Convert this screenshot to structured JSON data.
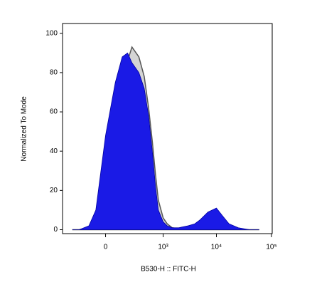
{
  "chart_data": {
    "type": "histogram-overlay",
    "xlabel": "B530-H :: FITC-H",
    "ylabel": "Normalized To Mode",
    "xscale": "biexponential",
    "x": [
      -300,
      -200,
      -100,
      -50,
      0,
      50,
      100,
      150,
      200,
      300,
      400,
      500,
      600,
      700,
      800,
      1000,
      1200,
      1500,
      2000,
      3000,
      4000,
      5000,
      7000,
      10000,
      13000,
      17000,
      25000,
      40000,
      60000
    ],
    "series": [
      {
        "name": null,
        "color": "#d4d4d4",
        "values": [
          0,
          0,
          1,
          8,
          40,
          70,
          82,
          86,
          93,
          88,
          78,
          62,
          45,
          28,
          15,
          6,
          3,
          1,
          0.5,
          0,
          0,
          0,
          0,
          0,
          0,
          0,
          0,
          0,
          0
        ]
      },
      {
        "name": null,
        "color": "#1a1ae6",
        "values": [
          0,
          0,
          2,
          10,
          48,
          75,
          88,
          90,
          85,
          80,
          72,
          58,
          40,
          22,
          10,
          4,
          2,
          1,
          1,
          2,
          3,
          5,
          9,
          11,
          7,
          3,
          1,
          0,
          0
        ]
      }
    ],
    "xlim": [
      -500,
      103000
    ],
    "ylim": [
      -2,
      105
    ],
    "xticks": [
      0,
      {
        "value": 1000,
        "label": "10³"
      },
      {
        "value": 10000,
        "label": "10⁴"
      },
      {
        "value": 100000,
        "label": "10⁵"
      }
    ],
    "yticks": [
      0,
      20,
      40,
      60,
      80,
      100
    ]
  }
}
